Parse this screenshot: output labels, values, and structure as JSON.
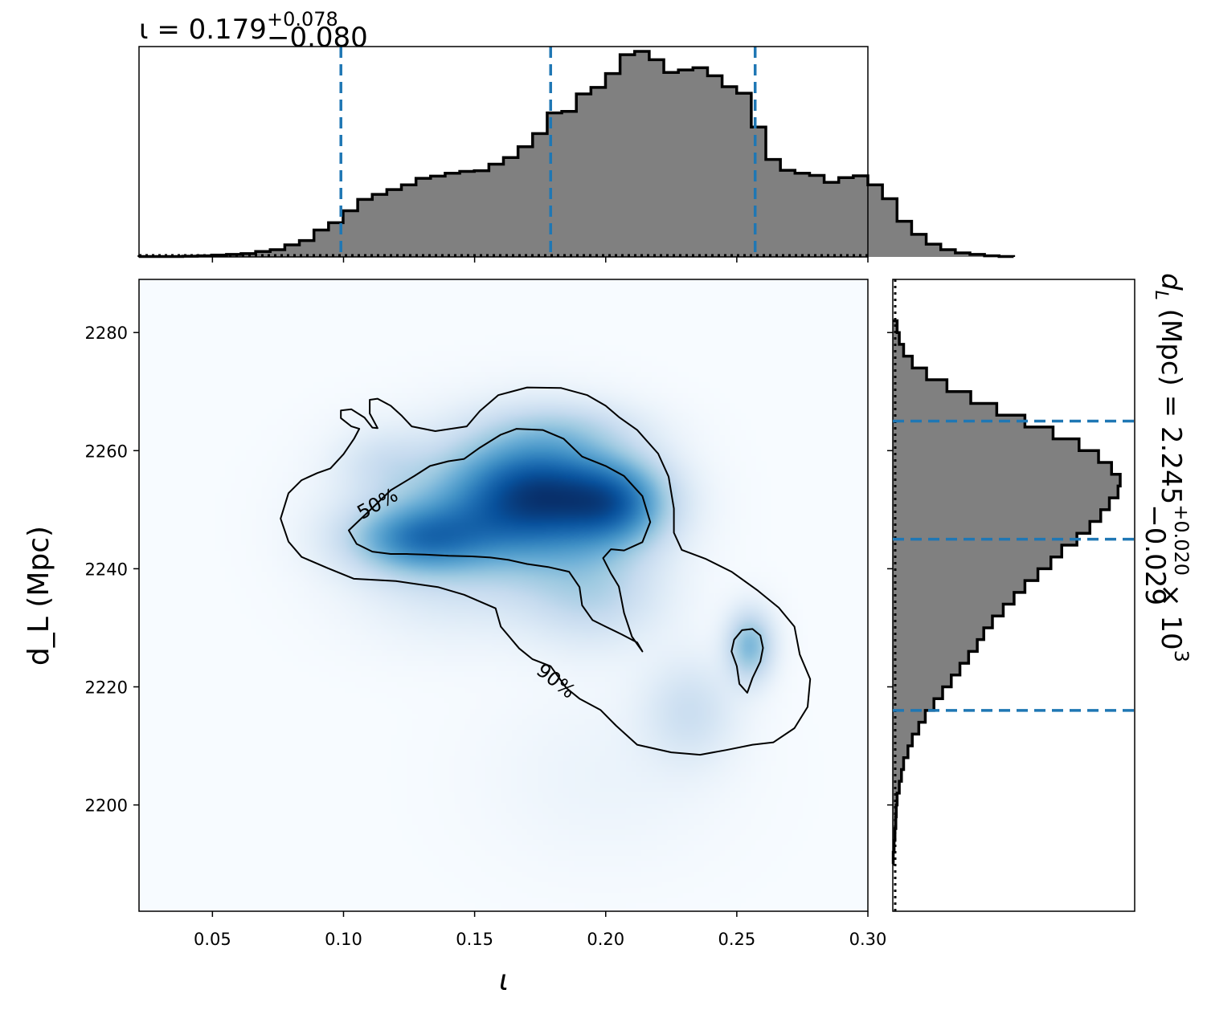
{
  "chart_data": [
    {
      "panel": "top-marginal",
      "type": "histogram",
      "parameter": "ι",
      "title": {
        "lhs": "ι = 0.179",
        "plus": "+0.078",
        "minus": "−0.080"
      },
      "bin_edges_start": 0.022,
      "bin_width": 0.00556,
      "density": [
        0.001,
        0.001,
        0.001,
        0.002,
        0.003,
        0.005,
        0.007,
        0.009,
        0.015,
        0.02,
        0.033,
        0.045,
        0.074,
        0.094,
        0.127,
        0.158,
        0.172,
        0.185,
        0.198,
        0.216,
        0.222,
        0.23,
        0.235,
        0.237,
        0.255,
        0.273,
        0.303,
        0.339,
        0.396,
        0.4,
        0.448,
        0.466,
        0.504,
        0.556,
        0.565,
        0.542,
        0.507,
        0.514,
        0.52,
        0.498,
        0.468,
        0.45,
        0.357,
        0.268,
        0.238,
        0.23,
        0.224,
        0.205,
        0.218,
        0.223,
        0.198,
        0.16,
        0.098,
        0.062,
        0.035,
        0.02,
        0.011,
        0.007,
        0.003,
        0.001
      ],
      "quantiles": [
        0.099,
        0.179,
        0.257
      ],
      "xlim": [
        0.022,
        0.3
      ],
      "x_ticks": [
        0.05,
        0.1,
        0.15,
        0.2,
        0.25,
        0.3
      ],
      "colors": {
        "fill": "#808080",
        "edge": "#000000",
        "quantile_line": "#1f77b4"
      }
    },
    {
      "panel": "right-marginal",
      "type": "histogram",
      "parameter": "d_L (Mpc)",
      "title": {
        "lhs": "(Mpc) = 2.245",
        "plus": "+0.020",
        "minus": "−0.029",
        "suffix": "× 10"
      },
      "bin_edges_start": 2190.0,
      "bin_width": 2.0,
      "density": [
        0.001,
        0.003,
        0.005,
        0.007,
        0.008,
        0.01,
        0.015,
        0.02,
        0.025,
        0.035,
        0.045,
        0.06,
        0.075,
        0.095,
        0.115,
        0.135,
        0.155,
        0.175,
        0.195,
        0.21,
        0.23,
        0.255,
        0.28,
        0.305,
        0.335,
        0.365,
        0.39,
        0.425,
        0.455,
        0.48,
        0.5,
        0.52,
        0.525,
        0.505,
        0.475,
        0.43,
        0.37,
        0.305,
        0.24,
        0.18,
        0.125,
        0.078,
        0.045,
        0.025,
        0.015,
        0.01
      ],
      "quantiles": [
        2216,
        2245,
        2265
      ],
      "ylim": [
        2182,
        2289
      ],
      "y_ticks": [
        2200,
        2220,
        2240,
        2260,
        2280
      ],
      "colors": {
        "fill": "#808080",
        "edge": "#000000",
        "quantile_line": "#1f77b4"
      }
    },
    {
      "panel": "joint",
      "type": "heatmap",
      "colormap": "Blues",
      "xlabel": "ι",
      "ylabel": "d_L (Mpc)",
      "xlim": [
        0.022,
        0.3
      ],
      "ylim": [
        2182,
        2289
      ],
      "x_ticks": [
        0.05,
        0.1,
        0.15,
        0.2,
        0.25,
        0.3
      ],
      "x_tick_labels": [
        "0.05",
        "0.10",
        "0.15",
        "0.20",
        "0.25",
        "0.30"
      ],
      "y_ticks": [
        2200,
        2220,
        2240,
        2260,
        2280
      ],
      "y_tick_labels": [
        "2200",
        "2220",
        "2240",
        "2260",
        "2280"
      ],
      "density_peaks": [
        {
          "x": 0.175,
          "y": 2253,
          "sx": 0.022,
          "sy": 7.0,
          "w": 1.0
        },
        {
          "x": 0.128,
          "y": 2245,
          "sx": 0.018,
          "sy": 4.0,
          "w": 0.7
        },
        {
          "x": 0.205,
          "y": 2251,
          "sx": 0.014,
          "sy": 5.0,
          "w": 0.7
        },
        {
          "x": 0.155,
          "y": 2249,
          "sx": 0.03,
          "sy": 8.0,
          "w": 0.45
        },
        {
          "x": 0.255,
          "y": 2227,
          "sx": 0.006,
          "sy": 4.0,
          "w": 0.55
        },
        {
          "x": 0.195,
          "y": 2236,
          "sx": 0.018,
          "sy": 6.0,
          "w": 0.3
        },
        {
          "x": 0.232,
          "y": 2216,
          "sx": 0.012,
          "sy": 6.0,
          "w": 0.22
        },
        {
          "x": 0.115,
          "y": 2258,
          "sx": 0.012,
          "sy": 4.0,
          "w": 0.15
        },
        {
          "x": 0.185,
          "y": 2264,
          "sx": 0.02,
          "sy": 3.0,
          "w": 0.15
        },
        {
          "x": 0.14,
          "y": 2235,
          "sx": 0.025,
          "sy": 6.0,
          "w": 0.08
        },
        {
          "x": 0.2,
          "y": 2205,
          "sx": 0.03,
          "sy": 10.0,
          "w": 0.05
        }
      ],
      "contours": [
        {
          "label": "50%",
          "label_at": {
            "x": 0.113,
            "y": 2251
          },
          "label_rotation_deg": -29,
          "points": [
            [
              0.102,
              2246.5
            ],
            [
              0.111,
              2250.3
            ],
            [
              0.118,
              2253.3
            ],
            [
              0.127,
              2255.7
            ],
            [
              0.133,
              2257.4
            ],
            [
              0.14,
              2258.2
            ],
            [
              0.146,
              2258.6
            ],
            [
              0.152,
              2260.5
            ],
            [
              0.16,
              2262.7
            ],
            [
              0.166,
              2263.7
            ],
            [
              0.176,
              2263.5
            ],
            [
              0.184,
              2262.0
            ],
            [
              0.191,
              2259.0
            ],
            [
              0.2,
              2257.4
            ],
            [
              0.207,
              2255.7
            ],
            [
              0.214,
              2252.3
            ],
            [
              0.217,
              2247.9
            ],
            [
              0.214,
              2244.5
            ],
            [
              0.207,
              2243.1
            ],
            [
              0.202,
              2243.3
            ],
            [
              0.199,
              2241.8
            ],
            [
              0.202,
              2239.2
            ],
            [
              0.205,
              2237.0
            ],
            [
              0.206,
              2234.8
            ],
            [
              0.207,
              2232.5
            ],
            [
              0.21,
              2228.5
            ],
            [
              0.214,
              2226.0
            ],
            [
              0.212,
              2227.5
            ],
            [
              0.206,
              2228.9
            ],
            [
              0.2,
              2230.2
            ],
            [
              0.195,
              2231.3
            ],
            [
              0.191,
              2233.8
            ],
            [
              0.19,
              2236.9
            ],
            [
              0.186,
              2239.5
            ],
            [
              0.178,
              2240.3
            ],
            [
              0.17,
              2240.8
            ],
            [
              0.163,
              2241.5
            ],
            [
              0.156,
              2241.9
            ],
            [
              0.149,
              2242.1
            ],
            [
              0.14,
              2242.2
            ],
            [
              0.131,
              2242.4
            ],
            [
              0.124,
              2242.5
            ],
            [
              0.118,
              2242.5
            ],
            [
              0.111,
              2242.9
            ],
            [
              0.105,
              2244.2
            ]
          ]
        },
        {
          "label": "90%",
          "label_at": {
            "x": 0.181,
            "y": 2221
          },
          "label_rotation_deg": 38,
          "points": [
            [
              0.076,
              2248.5
            ],
            [
              0.079,
              2252.8
            ],
            [
              0.084,
              2255.0
            ],
            [
              0.09,
              2256.2
            ],
            [
              0.095,
              2257.0
            ],
            [
              0.1,
              2259.4
            ],
            [
              0.104,
              2262.0
            ],
            [
              0.106,
              2263.7
            ],
            [
              0.103,
              2264.1
            ],
            [
              0.099,
              2265.5
            ],
            [
              0.099,
              2266.8
            ],
            [
              0.103,
              2267.0
            ],
            [
              0.108,
              2265.6
            ],
            [
              0.111,
              2263.9
            ],
            [
              0.113,
              2263.8
            ],
            [
              0.11,
              2266.3
            ],
            [
              0.11,
              2268.6
            ],
            [
              0.113,
              2268.8
            ],
            [
              0.118,
              2267.6
            ],
            [
              0.122,
              2266.0
            ],
            [
              0.126,
              2264.1
            ],
            [
              0.135,
              2263.3
            ],
            [
              0.147,
              2264.1
            ],
            [
              0.152,
              2266.7
            ],
            [
              0.159,
              2269.4
            ],
            [
              0.17,
              2270.7
            ],
            [
              0.183,
              2270.6
            ],
            [
              0.193,
              2269.4
            ],
            [
              0.2,
              2267.6
            ],
            [
              0.205,
              2265.7
            ],
            [
              0.212,
              2263.5
            ],
            [
              0.22,
              2259.5
            ],
            [
              0.224,
              2255.6
            ],
            [
              0.226,
              2250.2
            ],
            [
              0.226,
              2246.1
            ],
            [
              0.229,
              2243.2
            ],
            [
              0.238,
              2241.7
            ],
            [
              0.248,
              2239.5
            ],
            [
              0.258,
              2236.3
            ],
            [
              0.266,
              2233.4
            ],
            [
              0.272,
              2230.2
            ],
            [
              0.274,
              2225.5
            ],
            [
              0.278,
              2221.3
            ],
            [
              0.277,
              2216.6
            ],
            [
              0.272,
              2213.0
            ],
            [
              0.264,
              2210.6
            ],
            [
              0.256,
              2210.2
            ],
            [
              0.246,
              2209.3
            ],
            [
              0.236,
              2208.5
            ],
            [
              0.225,
              2208.9
            ],
            [
              0.212,
              2210.2
            ],
            [
              0.204,
              2213.4
            ],
            [
              0.198,
              2216.1
            ],
            [
              0.19,
              2218.0
            ],
            [
              0.185,
              2219.8
            ],
            [
              0.179,
              2223.5
            ],
            [
              0.172,
              2224.7
            ],
            [
              0.167,
              2226.5
            ],
            [
              0.16,
              2230.2
            ],
            [
              0.158,
              2233.3
            ],
            [
              0.146,
              2235.6
            ],
            [
              0.136,
              2236.9
            ],
            [
              0.12,
              2237.9
            ],
            [
              0.104,
              2238.3
            ],
            [
              0.094,
              2240.1
            ],
            [
              0.084,
              2242.0
            ],
            [
              0.079,
              2244.6
            ]
          ]
        },
        {
          "label": "",
          "points": [
            [
              0.252,
              2229.6
            ],
            [
              0.256,
              2229.8
            ],
            [
              0.259,
              2228.7
            ],
            [
              0.26,
              2226.6
            ],
            [
              0.259,
              2224.3
            ],
            [
              0.256,
              2221.5
            ],
            [
              0.254,
              2219.0
            ],
            [
              0.251,
              2220.5
            ],
            [
              0.25,
              2223.5
            ],
            [
              0.248,
              2226.0
            ],
            [
              0.249,
              2228.0
            ]
          ]
        }
      ]
    }
  ]
}
